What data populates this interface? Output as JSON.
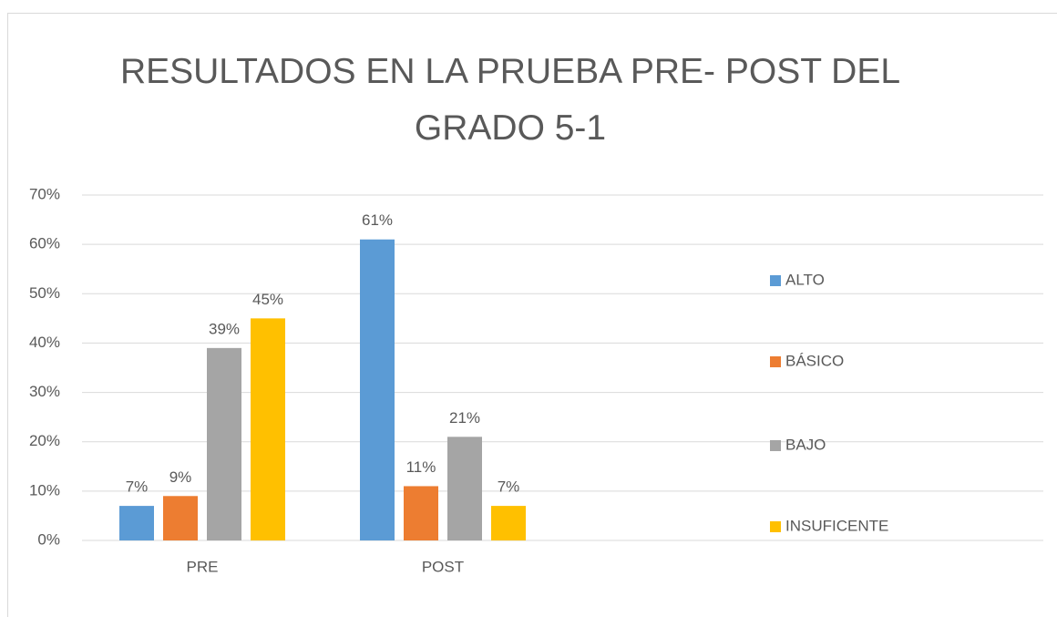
{
  "chart_data": {
    "type": "bar",
    "title": "RESULTADOS EN LA PRUEBA PRE- POST DEL GRADO 5-1",
    "categories": [
      "PRE",
      "POST"
    ],
    "series": [
      {
        "name": "ALTO",
        "color": "#5b9bd5",
        "values": [
          7,
          61
        ],
        "value_labels": [
          "7%",
          "61%"
        ]
      },
      {
        "name": "BÁSICO",
        "color": "#ed7d31",
        "values": [
          9,
          11
        ],
        "value_labels": [
          "9%",
          "11%"
        ]
      },
      {
        "name": "BAJO",
        "color": "#a5a5a5",
        "values": [
          39,
          21
        ],
        "value_labels": [
          "39%",
          "21%"
        ]
      },
      {
        "name": "INSUFICENTE",
        "color": "#ffc000",
        "values": [
          45,
          7
        ],
        "value_labels": [
          "45%",
          "7%"
        ]
      }
    ],
    "ylim": [
      0,
      70
    ],
    "yticks": [
      {
        "value": 0,
        "label": "0%"
      },
      {
        "value": 10,
        "label": "10%"
      },
      {
        "value": 20,
        "label": "20%"
      },
      {
        "value": 30,
        "label": "30%"
      },
      {
        "value": 40,
        "label": "40%"
      },
      {
        "value": 50,
        "label": "50%"
      },
      {
        "value": 60,
        "label": "60%"
      },
      {
        "value": 70,
        "label": "70%"
      }
    ],
    "grid": true,
    "legend": "right"
  }
}
